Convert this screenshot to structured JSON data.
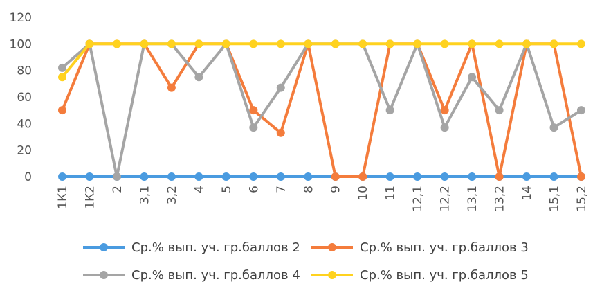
{
  "chart_data": {
    "type": "line",
    "title": "",
    "xlabel": "",
    "ylabel": "",
    "ylim": [
      0,
      120
    ],
    "yticks": [
      0,
      20,
      40,
      60,
      80,
      100,
      120
    ],
    "grid": false,
    "legend_position": "bottom",
    "categories": [
      "1К1",
      "1К2",
      "2",
      "3,1",
      "3,2",
      "4",
      "5",
      "6",
      "7",
      "8",
      "9",
      "10",
      "11",
      "12,1",
      "12,2",
      "13,1",
      "13,2",
      "14",
      "15,1",
      "15,2"
    ],
    "series": [
      {
        "name": "Ср.% вып. уч. гр.баллов 2",
        "color": "#4A9BE0",
        "values": [
          0,
          0,
          0,
          0,
          0,
          0,
          0,
          0,
          0,
          0,
          0,
          0,
          0,
          0,
          0,
          0,
          0,
          0,
          0,
          0
        ]
      },
      {
        "name": "Ср.% вып. уч. гр.баллов 3",
        "color": "#F47C3C",
        "values": [
          50,
          100,
          100,
          100,
          67,
          100,
          100,
          50,
          33,
          100,
          0,
          0,
          100,
          100,
          50,
          100,
          0,
          100,
          100,
          0
        ]
      },
      {
        "name": "Ср.% вып. уч. гр.баллов 4",
        "color": "#A5A5A5",
        "values": [
          82,
          100,
          0,
          100,
          100,
          75,
          100,
          37,
          67,
          100,
          100,
          100,
          50,
          100,
          37,
          75,
          50,
          100,
          37,
          50
        ]
      },
      {
        "name": "Ср.% вып. уч. гр.баллов 5",
        "color": "#FFD21F",
        "values": [
          75,
          100,
          100,
          100,
          100,
          100,
          100,
          100,
          100,
          100,
          100,
          100,
          100,
          100,
          100,
          100,
          100,
          100,
          100,
          100
        ]
      }
    ]
  }
}
